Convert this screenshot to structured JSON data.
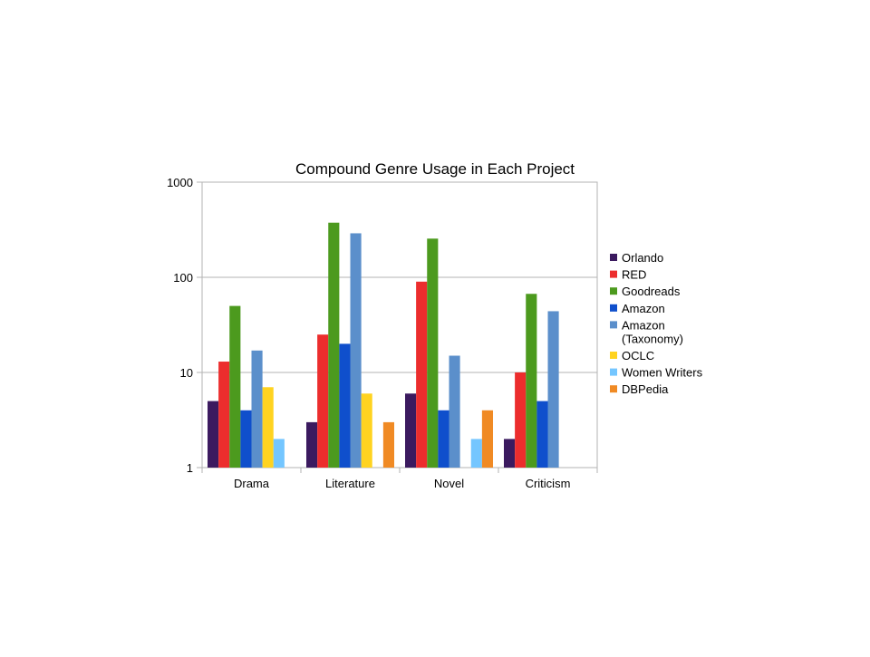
{
  "chart_data": {
    "type": "bar",
    "title": "Compound Genre Usage in Each Project",
    "xlabel": "",
    "ylabel": "",
    "yscale": "log",
    "ylim": [
      1,
      1000
    ],
    "yticks": [
      "1",
      "10",
      "100",
      "1000"
    ],
    "grid": true,
    "legend_position": "right",
    "categories": [
      "Drama",
      "Literature",
      "Novel",
      "Criticism"
    ],
    "series": [
      {
        "name": "Orlando",
        "color": "#3b1a5f",
        "values": [
          5,
          3,
          6,
          2
        ]
      },
      {
        "name": "RED",
        "color": "#ec2d2d",
        "values": [
          13,
          25,
          90,
          10
        ]
      },
      {
        "name": "Goodreads",
        "color": "#4c9a1e",
        "values": [
          50,
          375,
          255,
          67
        ]
      },
      {
        "name": "Amazon",
        "color": "#0f4fcc",
        "values": [
          4,
          20,
          4,
          5
        ]
      },
      {
        "name": "Amazon\n(Taxonomy)",
        "color": "#5b8fcb",
        "values": [
          17,
          290,
          15,
          44
        ]
      },
      {
        "name": "OCLC",
        "color": "#ffd320",
        "values": [
          7,
          6,
          null,
          null
        ]
      },
      {
        "name": "Women Writers",
        "color": "#74c6ff",
        "values": [
          2,
          null,
          2,
          null
        ]
      },
      {
        "name": "DBPedia",
        "color": "#f08a24",
        "values": [
          null,
          3,
          4,
          null
        ]
      }
    ]
  }
}
